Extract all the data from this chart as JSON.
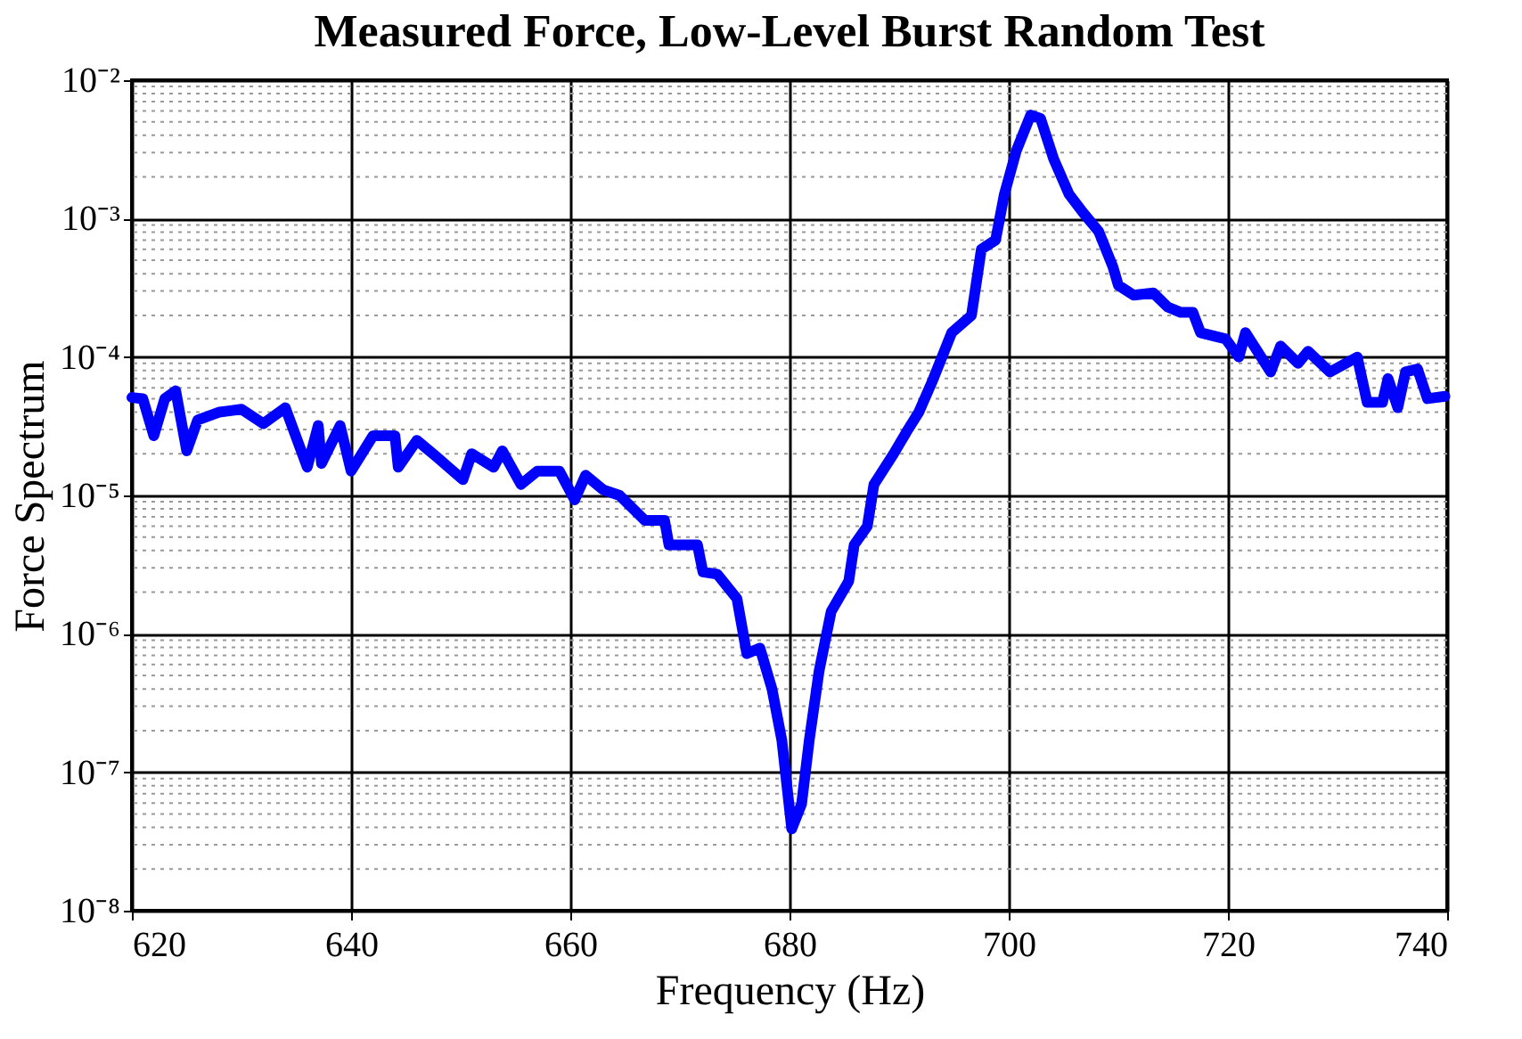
{
  "chart_data": {
    "type": "line",
    "title": "Measured Force, Low-Level Burst Random Test",
    "xlabel": "Frequency (Hz)",
    "ylabel": "Force Spectrum",
    "x": [
      620,
      621,
      622,
      623,
      624,
      625,
      626,
      628,
      630,
      632,
      634,
      636,
      637,
      637.3,
      639,
      640,
      642,
      644,
      644.3,
      646,
      647.8,
      650.2,
      651,
      653,
      653.8,
      655.5,
      657,
      659,
      660.4,
      661.4,
      663,
      664.5,
      666.8,
      668.6,
      669,
      671.6,
      672.1,
      673.4,
      675.2,
      676.1,
      677.3,
      678.4,
      679.3,
      680.2,
      681.1,
      681.8,
      682.7,
      683.8,
      685.4,
      685.9,
      687.1,
      687.7,
      689.5,
      690.7,
      691.8,
      693,
      694.8,
      696.6,
      697.5,
      698.8,
      699.6,
      700.7,
      702,
      702.9,
      704.1,
      705.5,
      706.8,
      708.2,
      709.5,
      710,
      711.4,
      713.2,
      714.5,
      715.7,
      716.8,
      717.5,
      719.8,
      721,
      721.6,
      723.9,
      724.8,
      726.4,
      727.3,
      729.3,
      731.8,
      732.7,
      734.1,
      734.6,
      735.5,
      736.2,
      737.3,
      738.2,
      739.8
    ],
    "series": [
      {
        "color": "#0000ff",
        "values": [
          5.1e-05,
          5e-05,
          2.7e-05,
          5e-05,
          5.7e-05,
          2.1e-05,
          3.5e-05,
          4e-05,
          4.2e-05,
          3.3e-05,
          4.3e-05,
          1.6e-05,
          3.2e-05,
          1.7e-05,
          3.2e-05,
          1.5e-05,
          2.7e-05,
          2.7e-05,
          1.6e-05,
          2.5e-05,
          1.9e-05,
          1.3e-05,
          2e-05,
          1.6e-05,
          2.1e-05,
          1.2e-05,
          1.5e-05,
          1.5e-05,
          9.3e-06,
          1.4e-05,
          1.1e-05,
          1e-05,
          6.6e-06,
          6.6e-06,
          4.4e-06,
          4.4e-06,
          2.8e-06,
          2.7e-06,
          1.8e-06,
          7.2e-07,
          7.9e-07,
          4e-07,
          1.7e-07,
          3.9e-08,
          5.9e-08,
          1.7e-07,
          5.4e-07,
          1.45e-06,
          2.4e-06,
          4.4e-06,
          6e-06,
          1.2e-05,
          2e-05,
          2.9e-05,
          4e-05,
          6.6e-05,
          0.00015,
          0.0002,
          0.0006,
          0.0007,
          0.0015,
          0.0031,
          0.0056,
          0.0053,
          0.0027,
          0.0015,
          0.0011,
          0.00081,
          0.00045,
          0.00033,
          0.00028,
          0.00029,
          0.00023,
          0.00021,
          0.00021,
          0.00015,
          0.000135,
          0.0001,
          0.00015,
          7.8e-05,
          0.00012,
          9e-05,
          0.00011,
          7.8e-05,
          0.0001,
          4.7e-05,
          4.7e-05,
          7e-05,
          4.3e-05,
          7.8e-05,
          8.2e-05,
          5e-05,
          5.2e-05
        ]
      }
    ],
    "xlim": [
      620,
      740
    ],
    "xticks": [
      620,
      640,
      660,
      680,
      700,
      720,
      740
    ],
    "ylim": [
      1e-08,
      0.01
    ],
    "yticks": [
      {
        "value": 1e-08,
        "label": "10⁻⁸"
      },
      {
        "value": 1e-07,
        "label": "10⁻⁷"
      },
      {
        "value": 1e-06,
        "label": "10⁻⁶"
      },
      {
        "value": 1e-05,
        "label": "10⁻⁵"
      },
      {
        "value": 0.0001,
        "label": "10⁻⁴"
      },
      {
        "value": 0.001,
        "label": "10⁻³"
      },
      {
        "value": 0.01,
        "label": "10⁻²"
      }
    ],
    "log": "y",
    "grid": true,
    "line_style": "solid",
    "marker": "none"
  }
}
